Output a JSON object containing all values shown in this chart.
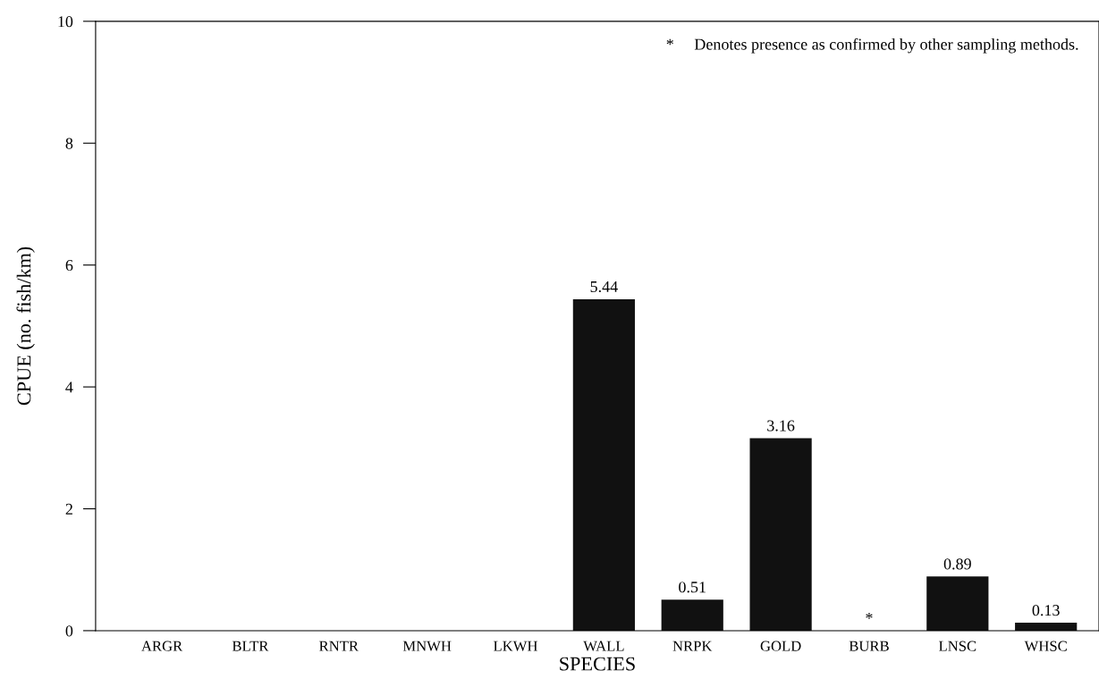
{
  "chart_data": {
    "type": "bar",
    "xlabel": "SPECIES",
    "ylabel": "CPUE (no. fish/km)",
    "categories": [
      "ARGR",
      "BLTR",
      "RNTR",
      "MNWH",
      "LKWH",
      "WALL",
      "NRPK",
      "GOLD",
      "BURB",
      "LNSC",
      "WHSC"
    ],
    "values": [
      0,
      0,
      0,
      0,
      0,
      5.44,
      0.51,
      3.16,
      0,
      0.89,
      0.13
    ],
    "value_labels": [
      null,
      null,
      null,
      null,
      null,
      "5.44",
      "0.51",
      "3.16",
      "*",
      "0.89",
      "0.13"
    ],
    "color": "#111111",
    "ylim": [
      0,
      10
    ],
    "yticks": [
      0,
      2,
      4,
      6,
      8,
      10
    ],
    "annotations": [
      "*     Denotes presence as confirmed by other sampling methods."
    ],
    "grid": false
  }
}
